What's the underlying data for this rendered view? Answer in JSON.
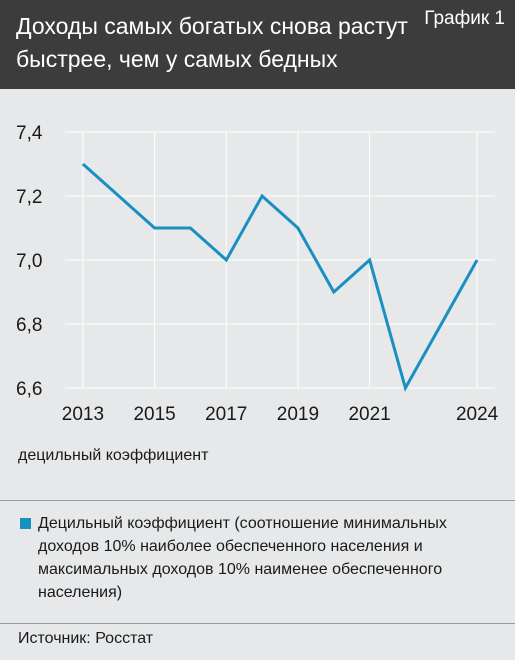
{
  "header": {
    "title": "Доходы самых богатых снова растут быстрее, чем у самых бедных",
    "figure_label": "График 1"
  },
  "chart_data": {
    "type": "line",
    "title": "Доходы самых богатых снова растут быстрее, чем у самых бедных",
    "ylabel": "децильный коэффициент",
    "xlabel": "",
    "x": [
      2013,
      2014,
      2015,
      2016,
      2017,
      2018,
      2019,
      2020,
      2021,
      2022,
      2023,
      2024
    ],
    "series": [
      {
        "name": "Децильный коэффициент (соотношение минимальных доходов 10% наиболее обеспеченного населения и максимальных доходов 10% наименее обеспеченного населения)",
        "values": [
          7.3,
          7.2,
          7.1,
          7.1,
          7.0,
          7.2,
          7.1,
          6.9,
          7.0,
          6.6,
          6.8,
          7.0
        ],
        "color": "#1a8fc1"
      }
    ],
    "xticks": [
      "2013",
      "2015",
      "2017",
      "2019",
      "2021",
      "2024"
    ],
    "yticks": [
      "6,6",
      "6,8",
      "7,0",
      "7,2",
      "7,4"
    ],
    "ylim": [
      6.6,
      7.4
    ],
    "grid": true,
    "legend_position": "bottom"
  },
  "legend": {
    "text": "Децильный коэффициент (соотношение минимальных доходов 10% наиболее обеспеченного населения и максимальных доходов 10% наименее обеспеченного населения)"
  },
  "source": "Источник: Росстат",
  "colors": {
    "header_bg": "#3c3c3c",
    "background": "#e7e8e9",
    "line": "#1a8fc1"
  }
}
